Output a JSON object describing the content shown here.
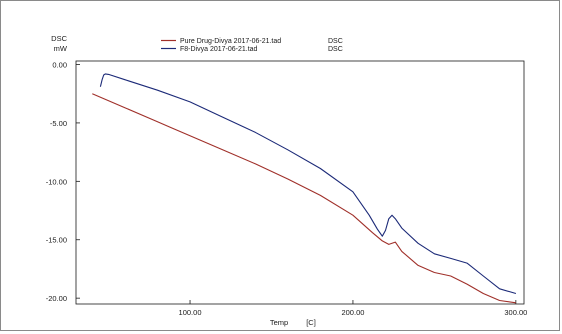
{
  "chart_data": {
    "type": "line",
    "ylabel": "DSC",
    "yunit": "mW",
    "xlabel": "Temp",
    "xunit": "[C]",
    "xlim": [
      30,
      305
    ],
    "ylim": [
      -20.5,
      0.3
    ],
    "xticks": [
      "100.00",
      "200.00",
      "300.00"
    ],
    "xtick_values": [
      100,
      200,
      300
    ],
    "yticks": [
      "0.00",
      "-5.00",
      "-10.00",
      "-15.00",
      "-20.00"
    ],
    "ytick_values": [
      0,
      -5,
      -10,
      -15,
      -20
    ],
    "grid": false,
    "legend_position": "top-center",
    "series": [
      {
        "name": "Pure Drug-Divya 2017-06-21.tad",
        "tag": "DSC",
        "color": "#a0302a",
        "x": [
          40,
          60,
          80,
          100,
          120,
          140,
          160,
          180,
          200,
          212,
          218,
          222,
          226,
          230,
          240,
          250,
          260,
          270,
          280,
          290,
          300
        ],
        "y": [
          -2.5,
          -3.7,
          -4.9,
          -6.1,
          -7.3,
          -8.5,
          -9.8,
          -11.2,
          -12.9,
          -14.4,
          -15.1,
          -15.4,
          -15.2,
          -16.0,
          -17.2,
          -17.8,
          -18.1,
          -18.8,
          -19.6,
          -20.2,
          -20.4
        ]
      },
      {
        "name": "F8-Divya 2017-06-21.tad",
        "tag": "DSC",
        "color": "#1c2a78",
        "x": [
          45,
          46,
          47,
          48,
          50,
          60,
          80,
          100,
          120,
          140,
          160,
          180,
          200,
          210,
          215,
          218,
          220,
          222,
          224,
          226,
          230,
          240,
          250,
          260,
          270,
          280,
          290,
          300
        ],
        "y": [
          -1.9,
          -1.3,
          -0.9,
          -0.8,
          -0.85,
          -1.3,
          -2.2,
          -3.2,
          -4.5,
          -5.8,
          -7.3,
          -8.9,
          -10.9,
          -12.9,
          -14.1,
          -14.7,
          -14.2,
          -13.2,
          -12.9,
          -13.2,
          -14.0,
          -15.3,
          -16.2,
          -16.6,
          -17.0,
          -18.1,
          -19.2,
          -19.6
        ]
      }
    ]
  }
}
